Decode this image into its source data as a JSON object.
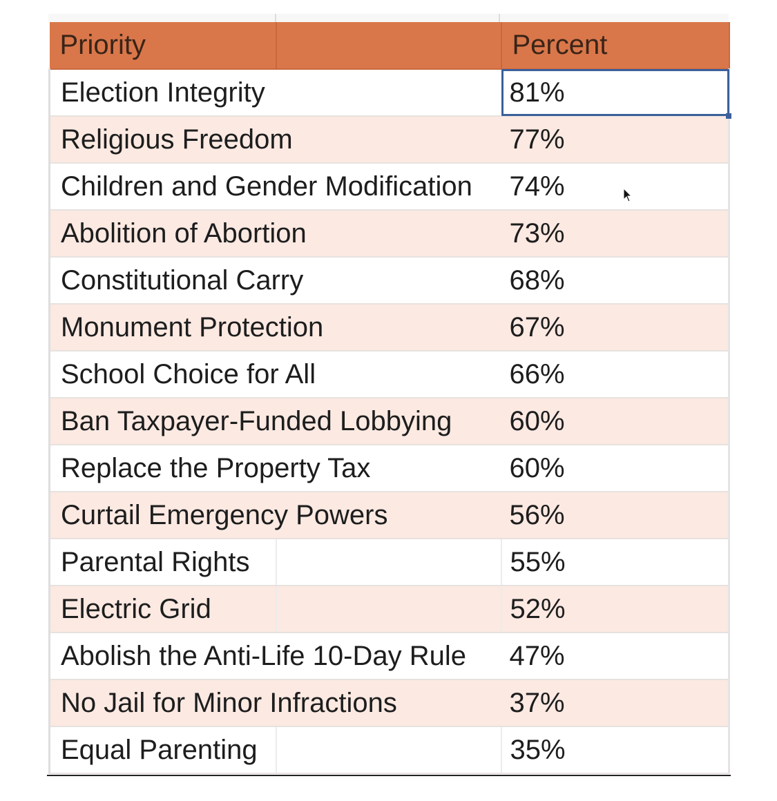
{
  "table": {
    "headers": {
      "priority": "Priority",
      "percent": "Percent"
    },
    "rows": [
      {
        "priority": "Election Integrity",
        "percent": "81%"
      },
      {
        "priority": "Religious Freedom",
        "percent": "77%"
      },
      {
        "priority": "Children and Gender Modification",
        "percent": "74%"
      },
      {
        "priority": "Abolition of Abortion",
        "percent": "73%"
      },
      {
        "priority": "Constitutional Carry",
        "percent": "68%"
      },
      {
        "priority": "Monument Protection",
        "percent": "67%"
      },
      {
        "priority": "School Choice for All",
        "percent": "66%"
      },
      {
        "priority": "Ban Taxpayer-Funded Lobbying",
        "percent": "60%"
      },
      {
        "priority": "Replace the Property Tax",
        "percent": "60%"
      },
      {
        "priority": "Curtail Emergency Powers",
        "percent": "56%"
      },
      {
        "priority": "Parental Rights",
        "percent": "55%"
      },
      {
        "priority": "Electric Grid",
        "percent": "52%"
      },
      {
        "priority": "Abolish the Anti-Life 10-Day Rule",
        "percent": "47%"
      },
      {
        "priority": "No Jail for Minor Infractions",
        "percent": "37%"
      },
      {
        "priority": "Equal Parenting",
        "percent": "35%"
      }
    ]
  },
  "colors": {
    "header_bg": "#d9774a",
    "band_row_bg": "#fbe9e2",
    "selection": "#3b5f9a"
  },
  "icons": {
    "cursor": "mouse-pointer-icon"
  }
}
